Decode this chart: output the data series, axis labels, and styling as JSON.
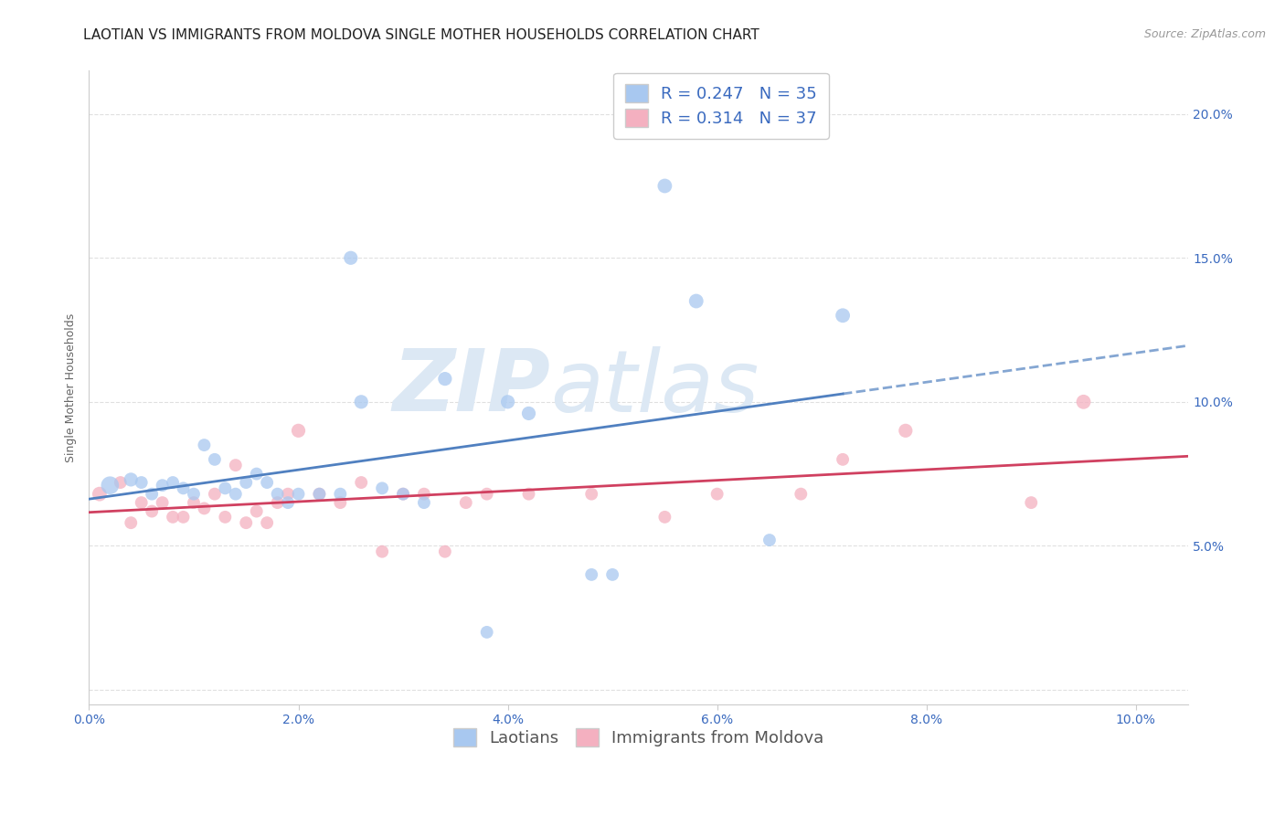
{
  "title": "LAOTIAN VS IMMIGRANTS FROM MOLDOVA SINGLE MOTHER HOUSEHOLDS CORRELATION CHART",
  "source": "Source: ZipAtlas.com",
  "ylabel": "Single Mother Households",
  "xlim": [
    0.0,
    0.105
  ],
  "ylim": [
    -0.005,
    0.215
  ],
  "xticks": [
    0.0,
    0.02,
    0.04,
    0.06,
    0.08,
    0.1
  ],
  "yticks": [
    0.0,
    0.05,
    0.1,
    0.15,
    0.2
  ],
  "xtick_labels": [
    "0.0%",
    "2.0%",
    "4.0%",
    "6.0%",
    "8.0%",
    "10.0%"
  ],
  "ytick_labels_left": [
    "",
    "",
    "",
    "",
    ""
  ],
  "ytick_labels_right": [
    "",
    "5.0%",
    "10.0%",
    "15.0%",
    "20.0%"
  ],
  "blue_R": 0.247,
  "blue_N": 35,
  "pink_R": 0.314,
  "pink_N": 37,
  "blue_label": "Laotians",
  "pink_label": "Immigrants from Moldova",
  "blue_color": "#a8c8f0",
  "pink_color": "#f4b0c0",
  "trend_blue": "#5080c0",
  "trend_pink": "#d04060",
  "text_blue": "#3a6abf",
  "blue_scatter_x": [
    0.002,
    0.004,
    0.005,
    0.006,
    0.007,
    0.008,
    0.009,
    0.01,
    0.011,
    0.012,
    0.013,
    0.014,
    0.015,
    0.016,
    0.017,
    0.018,
    0.019,
    0.02,
    0.022,
    0.024,
    0.025,
    0.026,
    0.028,
    0.03,
    0.032,
    0.034,
    0.038,
    0.04,
    0.042,
    0.048,
    0.05,
    0.055,
    0.058,
    0.065,
    0.072
  ],
  "blue_scatter_y": [
    0.071,
    0.073,
    0.072,
    0.068,
    0.071,
    0.072,
    0.07,
    0.068,
    0.085,
    0.08,
    0.07,
    0.068,
    0.072,
    0.075,
    0.072,
    0.068,
    0.065,
    0.068,
    0.068,
    0.068,
    0.15,
    0.1,
    0.07,
    0.068,
    0.065,
    0.108,
    0.02,
    0.1,
    0.096,
    0.04,
    0.04,
    0.175,
    0.135,
    0.052,
    0.13
  ],
  "blue_scatter_size": [
    200,
    120,
    100,
    100,
    100,
    100,
    100,
    100,
    100,
    100,
    100,
    100,
    100,
    100,
    100,
    100,
    100,
    100,
    100,
    100,
    120,
    120,
    100,
    100,
    100,
    120,
    100,
    120,
    120,
    100,
    100,
    130,
    130,
    100,
    130
  ],
  "pink_scatter_x": [
    0.001,
    0.003,
    0.004,
    0.005,
    0.006,
    0.007,
    0.008,
    0.009,
    0.01,
    0.011,
    0.012,
    0.013,
    0.014,
    0.015,
    0.016,
    0.017,
    0.018,
    0.019,
    0.02,
    0.022,
    0.024,
    0.026,
    0.028,
    0.03,
    0.032,
    0.034,
    0.036,
    0.038,
    0.042,
    0.048,
    0.055,
    0.06,
    0.068,
    0.072,
    0.078,
    0.09,
    0.095
  ],
  "pink_scatter_y": [
    0.068,
    0.072,
    0.058,
    0.065,
    0.062,
    0.065,
    0.06,
    0.06,
    0.065,
    0.063,
    0.068,
    0.06,
    0.078,
    0.058,
    0.062,
    0.058,
    0.065,
    0.068,
    0.09,
    0.068,
    0.065,
    0.072,
    0.048,
    0.068,
    0.068,
    0.048,
    0.065,
    0.068,
    0.068,
    0.068,
    0.06,
    0.068,
    0.068,
    0.08,
    0.09,
    0.065,
    0.1
  ],
  "pink_scatter_size": [
    130,
    100,
    100,
    100,
    100,
    100,
    100,
    100,
    100,
    100,
    100,
    100,
    100,
    100,
    100,
    100,
    100,
    100,
    120,
    100,
    100,
    100,
    100,
    100,
    100,
    100,
    100,
    100,
    100,
    100,
    100,
    100,
    100,
    100,
    120,
    100,
    130
  ],
  "watermark_zip": "ZIP",
  "watermark_atlas": "atlas",
  "watermark_color": "#dce8f4",
  "watermark_fontsize_zip": 68,
  "watermark_fontsize_atlas": 68,
  "title_fontsize": 11,
  "axis_label_fontsize": 9,
  "tick_fontsize": 10,
  "legend_fontsize": 13,
  "source_fontsize": 9,
  "background_color": "#ffffff",
  "grid_color": "#e0e0e0",
  "spine_color": "#cccccc"
}
